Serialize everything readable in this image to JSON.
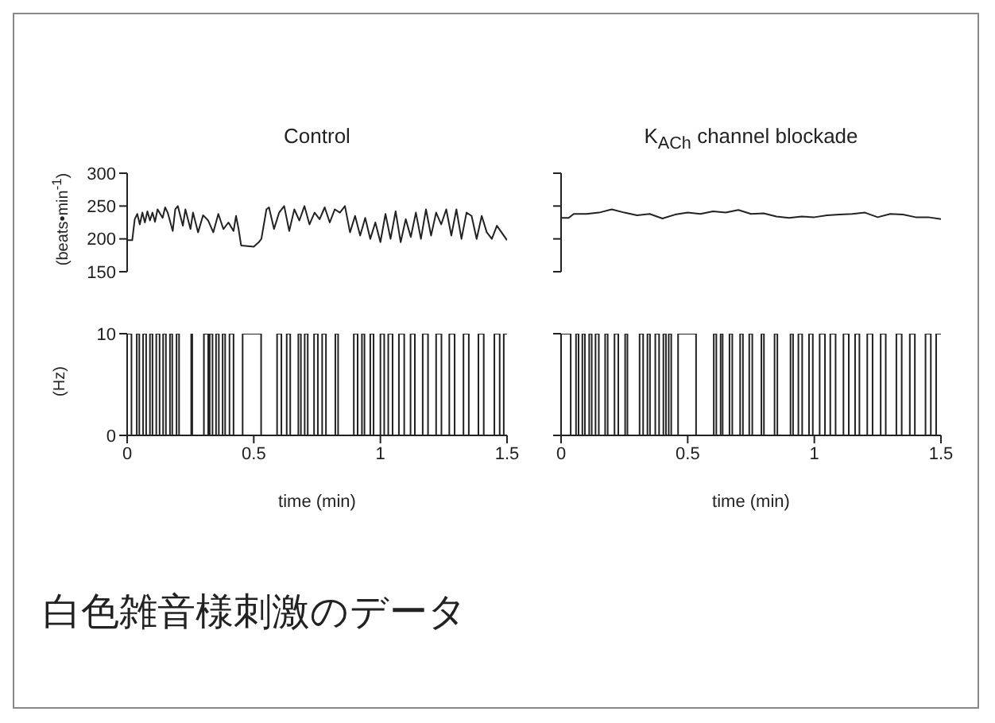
{
  "chart_data": [
    {
      "type": "line",
      "title": "Control",
      "ylabel": "(beats•min$^{-1}$)",
      "xlim": [
        0,
        1.5
      ],
      "ylim": [
        150,
        300
      ],
      "yticks": [
        150,
        200,
        250,
        300
      ],
      "tick_labels": "y",
      "series": [
        {
          "color": "#222222",
          "x": [
            0,
            0.02,
            0.03,
            0.04,
            0.05,
            0.06,
            0.07,
            0.08,
            0.09,
            0.1,
            0.11,
            0.12,
            0.14,
            0.15,
            0.16,
            0.18,
            0.19,
            0.2,
            0.22,
            0.23,
            0.25,
            0.26,
            0.28,
            0.3,
            0.32,
            0.34,
            0.36,
            0.38,
            0.4,
            0.42,
            0.43,
            0.44,
            0.45,
            0.5,
            0.52,
            0.53,
            0.55,
            0.56,
            0.58,
            0.6,
            0.62,
            0.64,
            0.66,
            0.68,
            0.7,
            0.72,
            0.74,
            0.76,
            0.78,
            0.8,
            0.82,
            0.84,
            0.86,
            0.88,
            0.9,
            0.92,
            0.94,
            0.96,
            0.98,
            1.0,
            1.02,
            1.04,
            1.06,
            1.08,
            1.1,
            1.12,
            1.14,
            1.16,
            1.18,
            1.2,
            1.22,
            1.24,
            1.26,
            1.28,
            1.3,
            1.32,
            1.34,
            1.36,
            1.38,
            1.4,
            1.42,
            1.44,
            1.46,
            1.5
          ],
          "values": [
            198,
            198,
            230,
            238,
            222,
            240,
            225,
            242,
            228,
            240,
            226,
            245,
            232,
            248,
            240,
            212,
            245,
            250,
            220,
            245,
            215,
            240,
            210,
            236,
            228,
            210,
            238,
            215,
            225,
            212,
            235,
            215,
            190,
            188,
            195,
            200,
            245,
            248,
            215,
            240,
            250,
            212,
            245,
            228,
            250,
            222,
            240,
            230,
            248,
            225,
            245,
            240,
            250,
            210,
            235,
            205,
            232,
            200,
            225,
            195,
            238,
            200,
            242,
            195,
            230,
            203,
            240,
            200,
            245,
            205,
            240,
            222,
            245,
            205,
            245,
            200,
            240,
            235,
            200,
            235,
            210,
            200,
            220,
            198
          ]
        }
      ]
    },
    {
      "type": "line",
      "title": "K$_{ACh}$ channel blockade",
      "xlim": [
        0,
        1.5
      ],
      "ylim": [
        150,
        300
      ],
      "yticks": [
        {
          "value": 150,
          "label": null
        },
        {
          "value": 200,
          "label": null
        },
        {
          "value": 250,
          "label": null
        },
        {
          "value": 300,
          "label": null
        }
      ],
      "tick_labels": false,
      "series": [
        {
          "color": "#222222",
          "x": [
            0,
            0.03,
            0.05,
            0.1,
            0.15,
            0.2,
            0.25,
            0.3,
            0.35,
            0.4,
            0.45,
            0.5,
            0.55,
            0.6,
            0.65,
            0.7,
            0.75,
            0.8,
            0.85,
            0.9,
            0.95,
            1.0,
            1.05,
            1.1,
            1.15,
            1.2,
            1.25,
            1.3,
            1.35,
            1.4,
            1.45,
            1.5
          ],
          "values": [
            232,
            232,
            238,
            238,
            240,
            245,
            240,
            236,
            238,
            231,
            237,
            240,
            238,
            242,
            240,
            244,
            238,
            239,
            234,
            232,
            234,
            233,
            236,
            237,
            238,
            240,
            233,
            238,
            237,
            233,
            233,
            230
          ]
        }
      ]
    },
    {
      "type": "step",
      "ylabel": "(Hz)",
      "xlabel": "time (min)",
      "xlim": [
        0,
        1.5
      ],
      "xticks": [
        0,
        0.5,
        1,
        1.5
      ],
      "ylim": [
        0,
        10
      ],
      "yticks": [
        0,
        10
      ],
      "series": [
        {
          "color": "#222222",
          "x": [
            0,
            0.017,
            0.038,
            0.048,
            0.063,
            0.075,
            0.09,
            0.1,
            0.115,
            0.128,
            0.142,
            0.153,
            0.169,
            0.178,
            0.195,
            0.205,
            0.253,
            0.257,
            0.303,
            0.32,
            0.326,
            0.337,
            0.351,
            0.362,
            0.377,
            0.387,
            0.404,
            0.42,
            0.456,
            0.529,
            0.592,
            0.609,
            0.63,
            0.644,
            0.676,
            0.686,
            0.701,
            0.713,
            0.738,
            0.753,
            0.77,
            0.785,
            0.822,
            0.833,
            0.895,
            0.91,
            0.927,
            0.937,
            0.96,
            0.973,
            1.0,
            1.015,
            1.031,
            1.048,
            1.073,
            1.094,
            1.119,
            1.136,
            1.167,
            1.188,
            1.22,
            1.241,
            1.272,
            1.293,
            1.328,
            1.349,
            1.387,
            1.408,
            1.45,
            1.471,
            1.487,
            1.5
          ],
          "values": [
            10,
            0,
            10,
            0,
            10,
            0,
            10,
            0,
            10,
            0,
            10,
            0,
            10,
            0,
            10,
            0,
            10,
            0,
            10,
            0,
            10,
            0,
            10,
            0,
            10,
            0,
            10,
            0,
            10,
            0,
            10,
            0,
            10,
            0,
            10,
            0,
            10,
            0,
            10,
            0,
            10,
            0,
            10,
            0,
            10,
            0,
            10,
            0,
            10,
            0,
            10,
            0,
            10,
            0,
            10,
            0,
            10,
            0,
            10,
            0,
            10,
            0,
            10,
            0,
            10,
            0,
            10,
            0,
            10,
            0,
            10,
            10
          ]
        }
      ]
    },
    {
      "type": "step",
      "xlabel": "time (min)",
      "xlim": [
        0,
        1.5
      ],
      "xticks": [
        0,
        0.5,
        1,
        1.5
      ],
      "ylim": [
        0,
        10
      ],
      "yticks": [
        {
          "value": 0,
          "label": null
        },
        {
          "value": 10,
          "label": null
        }
      ],
      "tick_labels": "x",
      "annotations": [
        "白色雑音様刺激のデータ"
      ],
      "series": [
        {
          "color": "#222222",
          "x": [
            0,
            0.038,
            0.059,
            0.069,
            0.084,
            0.094,
            0.111,
            0.121,
            0.136,
            0.149,
            0.174,
            0.184,
            0.211,
            0.226,
            0.253,
            0.262,
            0.31,
            0.324,
            0.341,
            0.351,
            0.372,
            0.387,
            0.404,
            0.414,
            0.425,
            0.435,
            0.462,
            0.533,
            0.603,
            0.613,
            0.63,
            0.638,
            0.665,
            0.676,
            0.707,
            0.718,
            0.743,
            0.755,
            0.791,
            0.801,
            0.843,
            0.854,
            0.906,
            0.916,
            0.937,
            0.952,
            0.979,
            0.994,
            1.021,
            1.042,
            1.063,
            1.084,
            1.115,
            1.136,
            1.161,
            1.178,
            1.209,
            1.23,
            1.262,
            1.282,
            1.324,
            1.345,
            1.377,
            1.397,
            1.439,
            1.46,
            1.481,
            1.5
          ],
          "values": [
            10,
            0,
            10,
            0,
            10,
            0,
            10,
            0,
            10,
            0,
            10,
            0,
            10,
            0,
            10,
            0,
            10,
            0,
            10,
            0,
            10,
            0,
            10,
            0,
            10,
            0,
            10,
            0,
            10,
            0,
            10,
            0,
            10,
            0,
            10,
            0,
            10,
            0,
            10,
            0,
            10,
            0,
            10,
            0,
            10,
            0,
            10,
            0,
            10,
            0,
            10,
            0,
            10,
            0,
            10,
            0,
            10,
            0,
            10,
            0,
            10,
            0,
            10,
            0,
            10,
            0,
            10,
            10
          ]
        }
      ]
    }
  ]
}
